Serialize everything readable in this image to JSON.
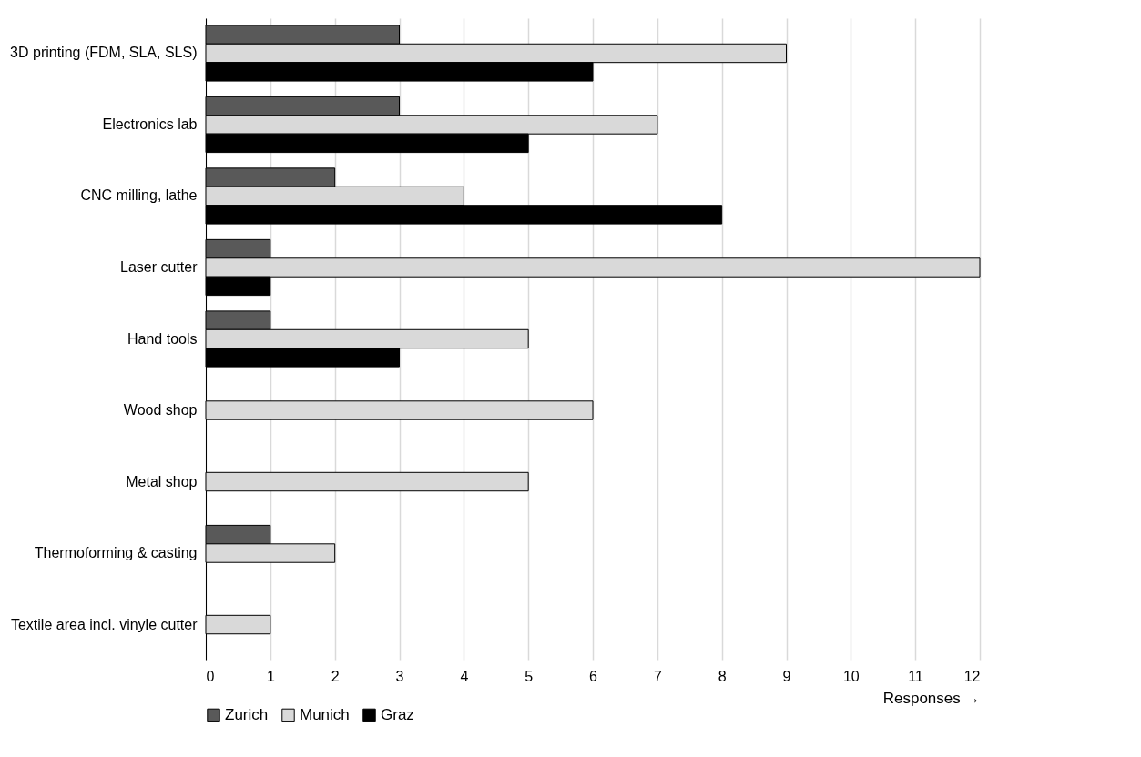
{
  "chart_data": {
    "type": "bar",
    "orientation": "horizontal",
    "xlabel": "Responses →",
    "categories": [
      "3D printing (FDM, SLA, SLS)",
      "Electronics lab",
      "CNC milling,  lathe",
      "Laser cutter",
      "Hand tools",
      "Wood shop",
      "Metal shop",
      "Thermoforming & casting",
      "Textile area incl. vinyle cutter"
    ],
    "series": [
      {
        "name": "Zurich",
        "color": "#595959",
        "values": [
          3,
          3,
          2,
          1,
          1,
          0,
          0,
          1,
          0
        ]
      },
      {
        "name": "Munich",
        "color": "#d9d9d9",
        "values": [
          9,
          7,
          4,
          12,
          5,
          6,
          5,
          2,
          1
        ]
      },
      {
        "name": "Graz",
        "color": "#000000",
        "values": [
          6,
          5,
          8,
          1,
          3,
          0,
          0,
          0,
          0
        ]
      }
    ],
    "xlim": [
      0,
      12
    ],
    "xticks": [
      0,
      1,
      2,
      3,
      4,
      5,
      6,
      7,
      8,
      9,
      10,
      11,
      12
    ],
    "grid": "x",
    "legend": "bottom"
  }
}
